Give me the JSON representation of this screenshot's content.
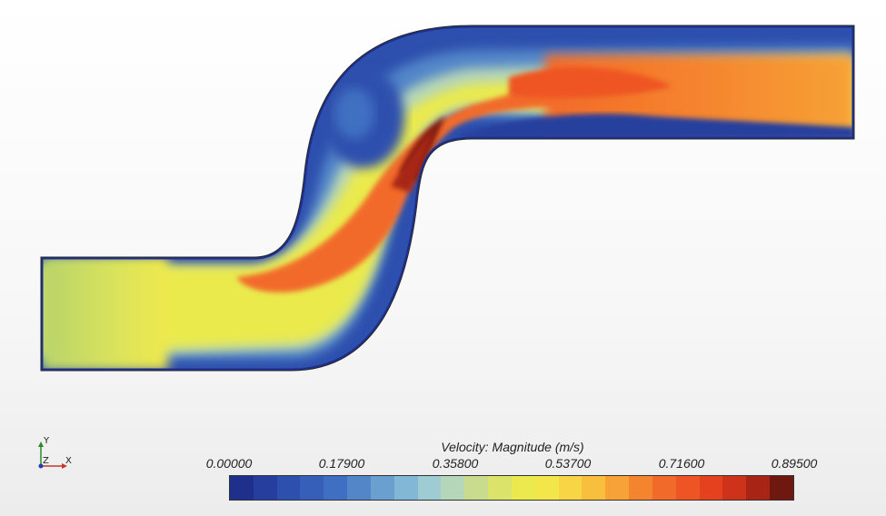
{
  "legend": {
    "title": "Velocity: Magnitude (m/s)",
    "ticks": [
      "0.00000",
      "0.17900",
      "0.35800",
      "0.53700",
      "0.71600",
      "0.89500"
    ],
    "colors": [
      "#1f2f8c",
      "#263f9e",
      "#2d4fad",
      "#355fb8",
      "#3f6fc2",
      "#5286c9",
      "#6aa0d0",
      "#82b8d5",
      "#9fcbd3",
      "#b5d6b8",
      "#c9dc8e",
      "#dce36a",
      "#eaea4e",
      "#f3e64a",
      "#f7d545",
      "#f8bf3f",
      "#f7a236",
      "#f5842e",
      "#f26a29",
      "#ee5424",
      "#e5411f",
      "#cf321a",
      "#a82516",
      "#6f1810"
    ]
  },
  "axes": {
    "y": "Y",
    "z": "Z",
    "x": "X"
  }
}
